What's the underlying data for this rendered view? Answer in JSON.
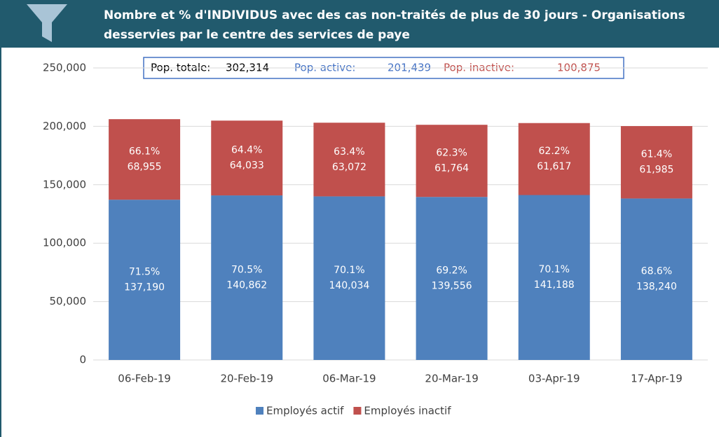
{
  "chart_data": {
    "type": "stacked_bar",
    "title": [
      "Nombre et % d'INDIVIDUS avec des cas non-traités de plus de 30 jours - Organisations",
      "desservies par le centre des services de paye"
    ],
    "info_box": [
      {
        "label": "Pop. totale:",
        "value": "302,314",
        "color": "#000000"
      },
      {
        "label": "Pop. active:",
        "value": "201,439",
        "color": "#4472c4"
      },
      {
        "label": "Pop. inactive:",
        "value": "100,875",
        "color": "#c0504d"
      }
    ],
    "categories": [
      "06-Feb-19",
      "20-Feb-19",
      "06-Mar-19",
      "20-Mar-19",
      "03-Apr-19",
      "17-Apr-19"
    ],
    "series": [
      {
        "name": "Employés actif",
        "color": "#4f81bd",
        "values": [
          137190,
          140862,
          140034,
          139556,
          141188,
          138240
        ],
        "value_labels": [
          "137,190",
          "140,862",
          "140,034",
          "139,556",
          "141,188",
          "138,240"
        ],
        "percent_labels": [
          "71.5%",
          "70.5%",
          "70.1%",
          "69.2%",
          "70.1%",
          "68.6%"
        ]
      },
      {
        "name": "Employés inactif",
        "color": "#c0504d",
        "values": [
          68955,
          64033,
          63072,
          61764,
          61617,
          61985
        ],
        "value_labels": [
          "68,955",
          "64,033",
          "63,072",
          "61,764",
          "61,617",
          "61,985"
        ],
        "percent_labels": [
          "66.1%",
          "64.4%",
          "63.4%",
          "62.3%",
          "62.2%",
          "61.4%"
        ]
      }
    ],
    "ylim": [
      0,
      250000
    ],
    "yticks": [
      0,
      {
        "value": 50000,
        "label": "50,000"
      },
      {
        "value": 100000,
        "label": "100,000"
      },
      {
        "value": 150000,
        "label": "150,000"
      },
      {
        "value": 200000,
        "label": "200,000"
      },
      {
        "value": 250000,
        "label": "250,000"
      }
    ],
    "grid": true,
    "legend": "bottom"
  }
}
